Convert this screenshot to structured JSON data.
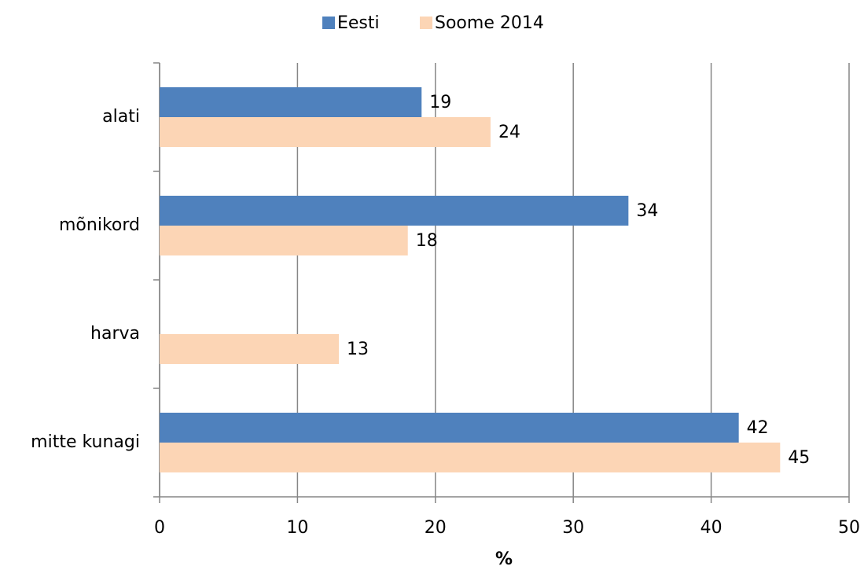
{
  "chart_data": {
    "type": "bar",
    "orientation": "horizontal",
    "categories": [
      "alati",
      "mõnikord",
      "harva",
      "mitte kunagi"
    ],
    "series": [
      {
        "name": "Eesti",
        "color": "#4f81bd",
        "values": [
          19,
          34,
          null,
          42
        ]
      },
      {
        "name": "Soome 2014",
        "color": "#fcd5b5",
        "values": [
          24,
          18,
          13,
          45
        ]
      }
    ],
    "x_label": "%",
    "xlim": [
      0,
      50
    ],
    "xticks": [
      0,
      10,
      20,
      30,
      40,
      50
    ],
    "grid": true,
    "legend": "top"
  }
}
